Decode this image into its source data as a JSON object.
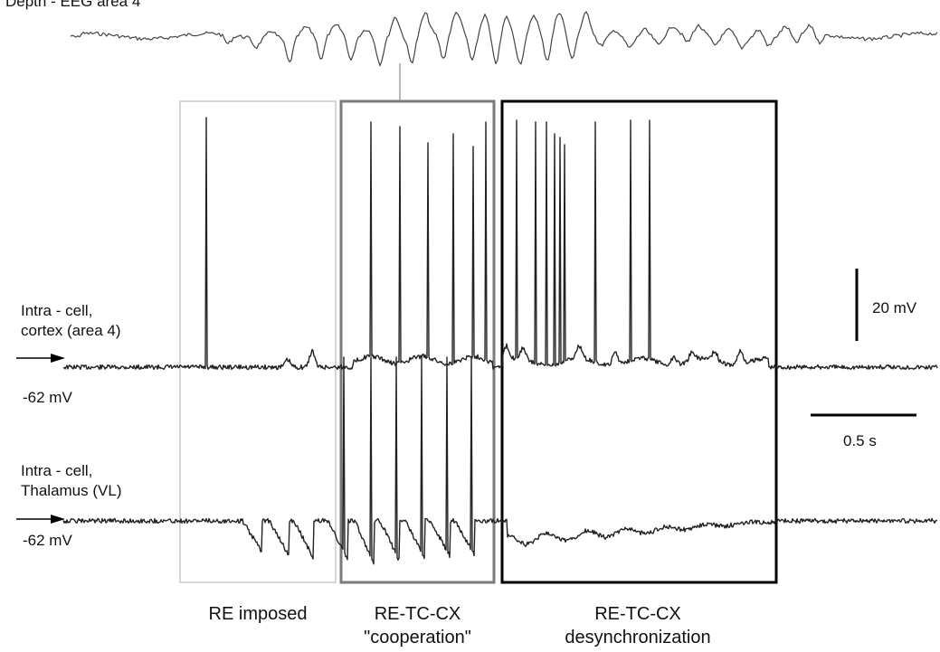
{
  "traces": {
    "eeg": {
      "label": "Depth - EEG area 4"
    },
    "cortex": {
      "label_line1": "Intra - cell,",
      "label_line2": "cortex (area 4)",
      "potential": "-62 mV"
    },
    "thalamus": {
      "label_line1": "Intra - cell,",
      "label_line2": "Thalamus (VL)",
      "potential": "-62 mV"
    }
  },
  "scale_bars": {
    "voltage": "20 mV",
    "time": "0.5 s"
  },
  "phases": [
    {
      "line1": "RE imposed",
      "line2": ""
    },
    {
      "line1": "RE-TC-CX",
      "line2": "\"cooperation\""
    },
    {
      "line1": "RE-TC-CX",
      "line2": "desynchronization"
    }
  ],
  "colors": {
    "trace": "#333333",
    "box_re_imposed": "#c8c8c8",
    "box_cooperation": "#7a7a7a",
    "box_desync": "#000000"
  }
}
